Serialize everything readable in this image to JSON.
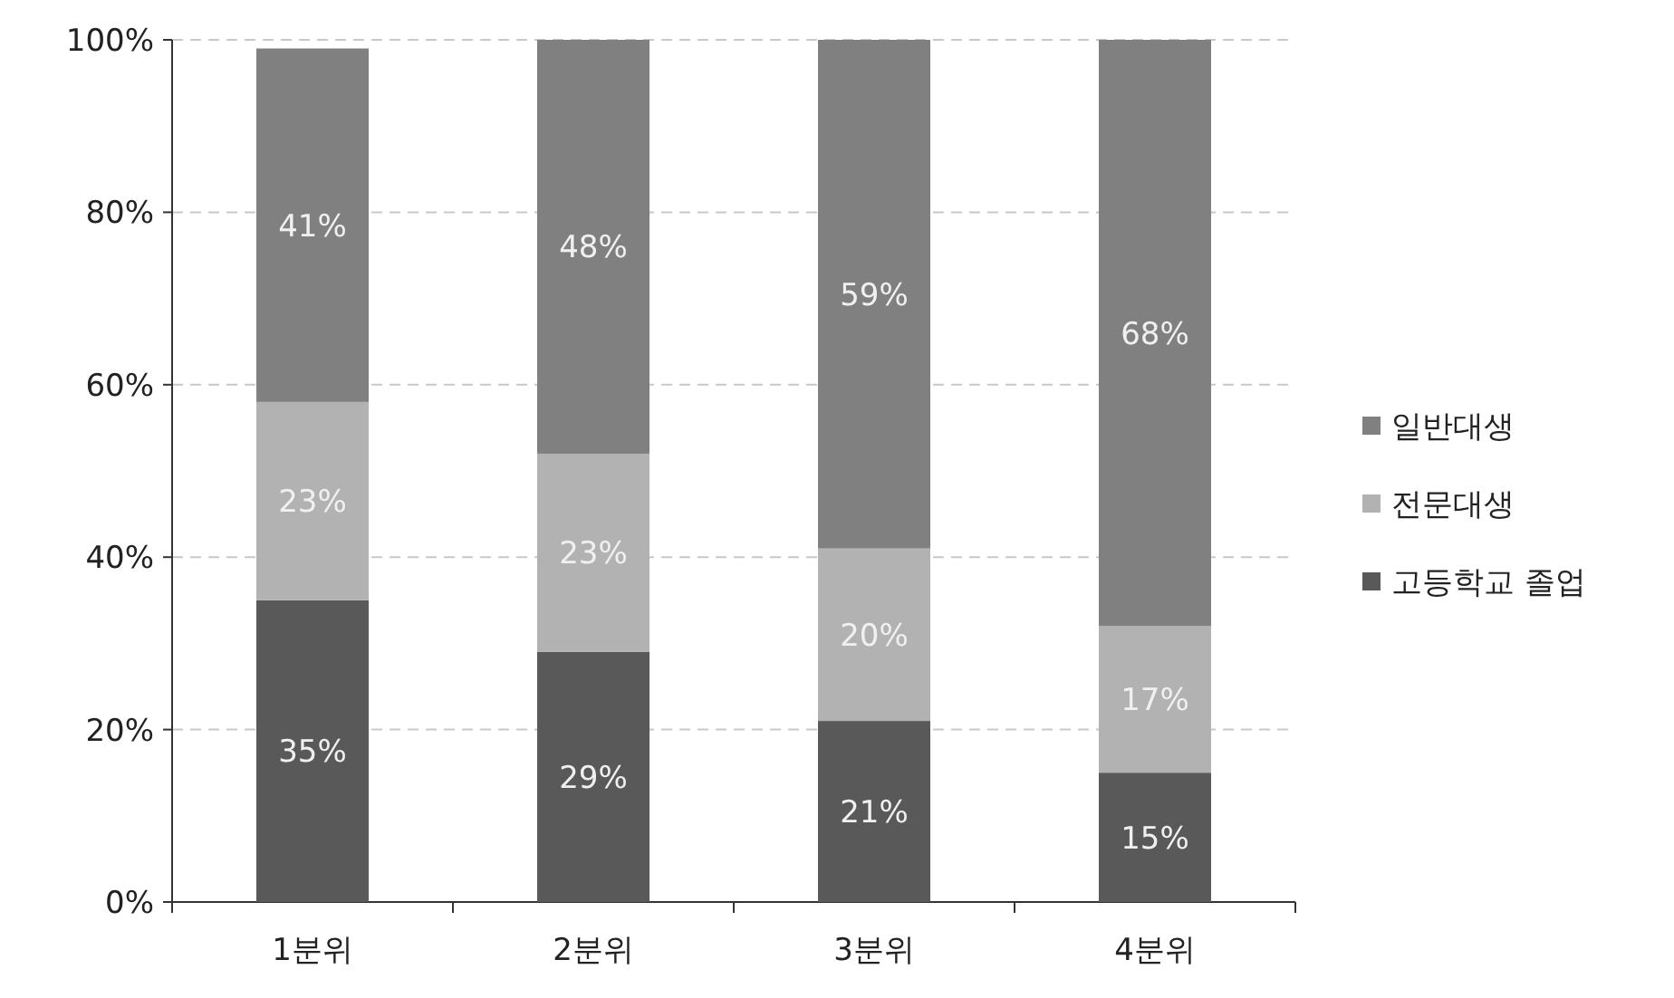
{
  "chart_data": {
    "type": "bar",
    "stacked": true,
    "categories": [
      "1분위",
      "2분위",
      "3분위",
      "4분위"
    ],
    "series": [
      {
        "name": "고등학교 졸업",
        "color": "#595959",
        "values": [
          35,
          29,
          21,
          15
        ],
        "value_labels": [
          "35%",
          "29%",
          "21%",
          "15%"
        ]
      },
      {
        "name": "전문대생",
        "color": "#b2b2b2",
        "values": [
          23,
          23,
          20,
          17
        ],
        "value_labels": [
          "23%",
          "23%",
          "20%",
          "17%"
        ]
      },
      {
        "name": "일반대생",
        "color": "#808080",
        "values": [
          41,
          48,
          59,
          68
        ],
        "value_labels": [
          "41%",
          "48%",
          "59%",
          "68%"
        ]
      }
    ],
    "ylim": [
      0,
      100
    ],
    "yticks": [
      {
        "value": 0,
        "label": "0%"
      },
      {
        "value": 20,
        "label": "20%"
      },
      {
        "value": 40,
        "label": "40%"
      },
      {
        "value": 60,
        "label": "60%"
      },
      {
        "value": 80,
        "label": "80%"
      },
      {
        "value": 100,
        "label": "100%"
      }
    ],
    "grid": "y",
    "legend": "right"
  }
}
